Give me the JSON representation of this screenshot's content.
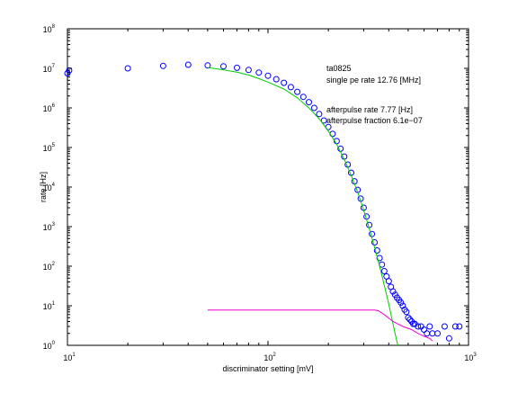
{
  "chart_data": {
    "type": "scatter",
    "xscale": "log",
    "yscale": "log",
    "xlim": [
      10,
      1000
    ],
    "ylim": [
      1,
      100000000
    ],
    "grid": false,
    "xlabel": "discriminator setting [mV]",
    "ylabel": "rate [Hz]",
    "x_ticks": [
      {
        "value": 10,
        "base": "10",
        "exp": "1"
      },
      {
        "value": 100,
        "base": "10",
        "exp": "2"
      },
      {
        "value": 1000,
        "base": "10",
        "exp": "3"
      }
    ],
    "y_ticks": [
      {
        "value": 1,
        "base": "10",
        "exp": "0"
      },
      {
        "value": 10,
        "base": "10",
        "exp": "1"
      },
      {
        "value": 100,
        "base": "10",
        "exp": "2"
      },
      {
        "value": 1000,
        "base": "10",
        "exp": "3"
      },
      {
        "value": 10000,
        "base": "10",
        "exp": "4"
      },
      {
        "value": 100000,
        "base": "10",
        "exp": "5"
      },
      {
        "value": 1000000,
        "base": "10",
        "exp": "6"
      },
      {
        "value": 10000000,
        "base": "10",
        "exp": "7"
      },
      {
        "value": 100000000,
        "base": "10",
        "exp": "8"
      }
    ],
    "annotations": [
      "ta0825",
      "single pe rate 12.76 [MHz]",
      "afterpulse rate 7.77 [Hz]",
      "afterpulse fraction 6.1e−07"
    ],
    "series": [
      {
        "kind": "markers",
        "color": "#0000ff",
        "points": [
          [
            10,
            7500000
          ],
          [
            10.2,
            8800000
          ],
          [
            20,
            10000000
          ],
          [
            30,
            11500000
          ],
          [
            40,
            12300000
          ],
          [
            50,
            11800000
          ],
          [
            60,
            11200000
          ],
          [
            70,
            10300000
          ],
          [
            80,
            9100000
          ],
          [
            90,
            7800000
          ],
          [
            100,
            6500000
          ],
          [
            110,
            5300000
          ],
          [
            120,
            4300000
          ],
          [
            130,
            3350000
          ],
          [
            140,
            2550000
          ],
          [
            150,
            1900000
          ],
          [
            160,
            1400000
          ],
          [
            170,
            1000000
          ],
          [
            180,
            700000
          ],
          [
            190,
            480000
          ],
          [
            200,
            330000
          ],
          [
            210,
            220000
          ],
          [
            220,
            145000
          ],
          [
            230,
            93000
          ],
          [
            240,
            59000
          ],
          [
            250,
            37000
          ],
          [
            260,
            23000
          ],
          [
            270,
            14000
          ],
          [
            280,
            8500
          ],
          [
            290,
            5100
          ],
          [
            300,
            3000
          ],
          [
            310,
            1800
          ],
          [
            320,
            1100
          ],
          [
            330,
            650
          ],
          [
            340,
            400
          ],
          [
            350,
            250
          ],
          [
            360,
            160
          ],
          [
            370,
            110
          ],
          [
            380,
            75
          ],
          [
            390,
            55
          ],
          [
            400,
            42
          ],
          [
            410,
            30
          ],
          [
            420,
            23
          ],
          [
            430,
            19
          ],
          [
            440,
            16
          ],
          [
            450,
            14
          ],
          [
            460,
            12
          ],
          [
            470,
            10
          ],
          [
            480,
            8
          ],
          [
            490,
            7
          ],
          [
            500,
            5
          ],
          [
            510,
            4.5
          ],
          [
            520,
            4
          ],
          [
            530,
            3.5
          ],
          [
            540,
            3.5
          ],
          [
            560,
            3
          ],
          [
            580,
            3
          ],
          [
            600,
            2.5
          ],
          [
            620,
            2
          ],
          [
            640,
            3
          ],
          [
            660,
            2
          ],
          [
            700,
            2
          ],
          [
            760,
            3
          ],
          [
            800,
            1.5
          ],
          [
            860,
            3
          ],
          [
            900,
            3
          ]
        ]
      },
      {
        "kind": "line",
        "color": "#00cc00",
        "points": [
          [
            50,
            10500000
          ],
          [
            60,
            9200000
          ],
          [
            70,
            8000000
          ],
          [
            80,
            6800000
          ],
          [
            90,
            5500000
          ],
          [
            100,
            4500000
          ],
          [
            120,
            3000000
          ],
          [
            140,
            1800000
          ],
          [
            160,
            1000000
          ],
          [
            180,
            530000
          ],
          [
            200,
            260000
          ],
          [
            220,
            120000
          ],
          [
            240,
            50000
          ],
          [
            260,
            20000
          ],
          [
            280,
            7500
          ],
          [
            300,
            2600
          ],
          [
            320,
            900
          ],
          [
            340,
            300
          ],
          [
            360,
            100
          ],
          [
            380,
            33
          ],
          [
            400,
            11
          ],
          [
            420,
            3.5
          ],
          [
            440,
            1.2
          ],
          [
            445,
            1
          ]
        ]
      },
      {
        "kind": "line",
        "color": "#ee00cc",
        "points": [
          [
            50,
            7.77
          ],
          [
            100,
            7.77
          ],
          [
            200,
            7.77
          ],
          [
            300,
            7.77
          ],
          [
            340,
            7.77
          ],
          [
            355,
            7.5
          ],
          [
            380,
            6
          ],
          [
            420,
            4
          ],
          [
            470,
            3
          ],
          [
            520,
            2.5
          ],
          [
            560,
            2
          ],
          [
            600,
            1.7
          ],
          [
            640,
            1.5
          ],
          [
            660,
            1.3
          ]
        ]
      }
    ]
  }
}
